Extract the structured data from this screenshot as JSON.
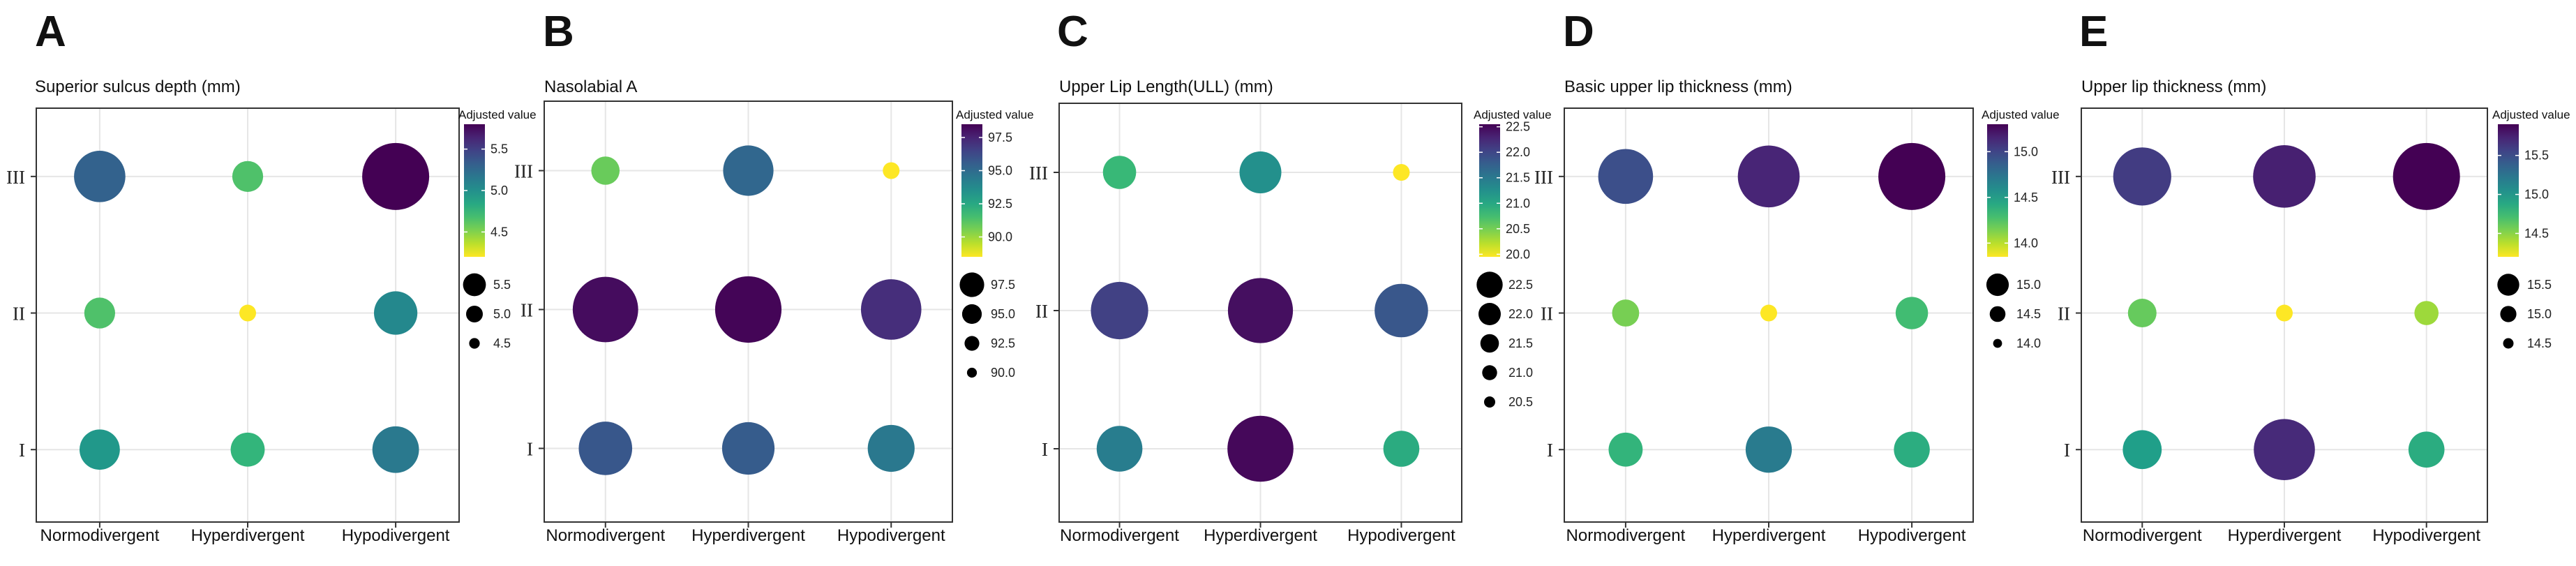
{
  "chart_data": [
    {
      "type": "scatter",
      "panel_label": "A",
      "title": "Superior sulcus depth (mm)",
      "x_categories": [
        "Normodivergent",
        "Hyperdivergent",
        "Hypodivergent"
      ],
      "y_categories": [
        "I",
        "II",
        "III"
      ],
      "points": [
        {
          "x": "Normodivergent",
          "y": "III",
          "value": 5.3
        },
        {
          "x": "Hyperdivergent",
          "y": "III",
          "value": 4.65
        },
        {
          "x": "Hypodivergent",
          "y": "III",
          "value": 5.8
        },
        {
          "x": "Normodivergent",
          "y": "II",
          "value": 4.65
        },
        {
          "x": "Hyperdivergent",
          "y": "II",
          "value": 4.2
        },
        {
          "x": "Hypodivergent",
          "y": "II",
          "value": 5.05
        },
        {
          "x": "Normodivergent",
          "y": "I",
          "value": 4.95
        },
        {
          "x": "Hyperdivergent",
          "y": "I",
          "value": 4.75
        },
        {
          "x": "Hypodivergent",
          "y": "I",
          "value": 5.15
        }
      ],
      "color_legend": {
        "title": "Adjusted value",
        "ticks": [
          "5.5",
          "5.0",
          "4.5"
        ],
        "range": [
          4.2,
          5.8
        ]
      },
      "size_legend": {
        "ticks": [
          "5.5",
          "5.0",
          "4.5"
        ]
      }
    },
    {
      "type": "scatter",
      "panel_label": "B",
      "title": "Nasolabial A",
      "x_categories": [
        "Normodivergent",
        "Hyperdivergent",
        "Hypodivergent"
      ],
      "y_categories": [
        "I",
        "II",
        "III"
      ],
      "points": [
        {
          "x": "Normodivergent",
          "y": "III",
          "value": 90.8
        },
        {
          "x": "Hyperdivergent",
          "y": "III",
          "value": 95.2
        },
        {
          "x": "Hypodivergent",
          "y": "III",
          "value": 88.5
        },
        {
          "x": "Normodivergent",
          "y": "II",
          "value": 98.2
        },
        {
          "x": "Hyperdivergent",
          "y": "II",
          "value": 98.4
        },
        {
          "x": "Hypodivergent",
          "y": "II",
          "value": 97.2
        },
        {
          "x": "Normodivergent",
          "y": "I",
          "value": 95.8
        },
        {
          "x": "Hyperdivergent",
          "y": "I",
          "value": 95.6
        },
        {
          "x": "Hypodivergent",
          "y": "I",
          "value": 94.5
        }
      ],
      "color_legend": {
        "title": "Adjusted value",
        "ticks": [
          "97.5",
          "95.0",
          "92.5",
          "90.0"
        ],
        "range": [
          88.5,
          98.5
        ]
      },
      "size_legend": {
        "ticks": [
          "97.5",
          "95.0",
          "92.5",
          "90.0"
        ]
      }
    },
    {
      "type": "scatter",
      "panel_label": "C",
      "title": "Upper Lip Length(ULL) (mm)",
      "x_categories": [
        "Normodivergent",
        "Hyperdivergent",
        "Hypodivergent"
      ],
      "y_categories": [
        "I",
        "II",
        "III"
      ],
      "points": [
        {
          "x": "Normodivergent",
          "y": "III",
          "value": 20.8
        },
        {
          "x": "Hyperdivergent",
          "y": "III",
          "value": 21.25
        },
        {
          "x": "Hypodivergent",
          "y": "III",
          "value": 19.95
        },
        {
          "x": "Normodivergent",
          "y": "II",
          "value": 22.05
        },
        {
          "x": "Hyperdivergent",
          "y": "II",
          "value": 22.45
        },
        {
          "x": "Hypodivergent",
          "y": "II",
          "value": 21.85
        },
        {
          "x": "Normodivergent",
          "y": "I",
          "value": 21.45
        },
        {
          "x": "Hyperdivergent",
          "y": "I",
          "value": 22.5
        },
        {
          "x": "Hypodivergent",
          "y": "I",
          "value": 20.95
        }
      ],
      "color_legend": {
        "title": "Adjusted value",
        "ticks": [
          "22.5",
          "22.0",
          "21.5",
          "21.0",
          "20.5",
          "20.0"
        ],
        "range": [
          19.95,
          22.55
        ]
      },
      "size_legend": {
        "ticks": [
          "22.5",
          "22.0",
          "21.5",
          "21.0",
          "20.5"
        ]
      }
    },
    {
      "type": "scatter",
      "panel_label": "D",
      "title": "Basic upper lip thickness (mm)",
      "x_categories": [
        "Normodivergent",
        "Hyperdivergent",
        "Hypodivergent"
      ],
      "y_categories": [
        "I",
        "II",
        "III"
      ],
      "points": [
        {
          "x": "Normodivergent",
          "y": "III",
          "value": 14.95
        },
        {
          "x": "Hyperdivergent",
          "y": "III",
          "value": 15.15
        },
        {
          "x": "Hypodivergent",
          "y": "III",
          "value": 15.3
        },
        {
          "x": "Normodivergent",
          "y": "II",
          "value": 14.15
        },
        {
          "x": "Hyperdivergent",
          "y": "II",
          "value": 13.85
        },
        {
          "x": "Hypodivergent",
          "y": "II",
          "value": 14.3
        },
        {
          "x": "Normodivergent",
          "y": "I",
          "value": 14.35
        },
        {
          "x": "Hyperdivergent",
          "y": "I",
          "value": 14.7
        },
        {
          "x": "Hypodivergent",
          "y": "I",
          "value": 14.4
        }
      ],
      "color_legend": {
        "title": "Adjusted value",
        "ticks": [
          "15.0",
          "14.5",
          "14.0"
        ],
        "range": [
          13.85,
          15.3
        ]
      },
      "size_legend": {
        "ticks": [
          "15.0",
          "14.5",
          "14.0"
        ]
      }
    },
    {
      "type": "scatter",
      "panel_label": "E",
      "title": "Upper lip thickness (mm)",
      "x_categories": [
        "Normodivergent",
        "Hyperdivergent",
        "Hypodivergent"
      ],
      "y_categories": [
        "I",
        "II",
        "III"
      ],
      "points": [
        {
          "x": "Normodivergent",
          "y": "III",
          "value": 15.6
        },
        {
          "x": "Hyperdivergent",
          "y": "III",
          "value": 15.75
        },
        {
          "x": "Hypodivergent",
          "y": "III",
          "value": 15.9
        },
        {
          "x": "Normodivergent",
          "y": "II",
          "value": 14.6
        },
        {
          "x": "Hyperdivergent",
          "y": "II",
          "value": 14.2
        },
        {
          "x": "Hypodivergent",
          "y": "II",
          "value": 14.45
        },
        {
          "x": "Normodivergent",
          "y": "I",
          "value": 14.95
        },
        {
          "x": "Hyperdivergent",
          "y": "I",
          "value": 15.7
        },
        {
          "x": "Hypodivergent",
          "y": "I",
          "value": 14.85
        }
      ],
      "color_legend": {
        "title": "Adjusted value",
        "ticks": [
          "15.5",
          "15.0",
          "14.5"
        ],
        "range": [
          14.2,
          15.9
        ]
      },
      "size_legend": {
        "ticks": [
          "15.5",
          "15.0",
          "14.5"
        ]
      }
    }
  ]
}
